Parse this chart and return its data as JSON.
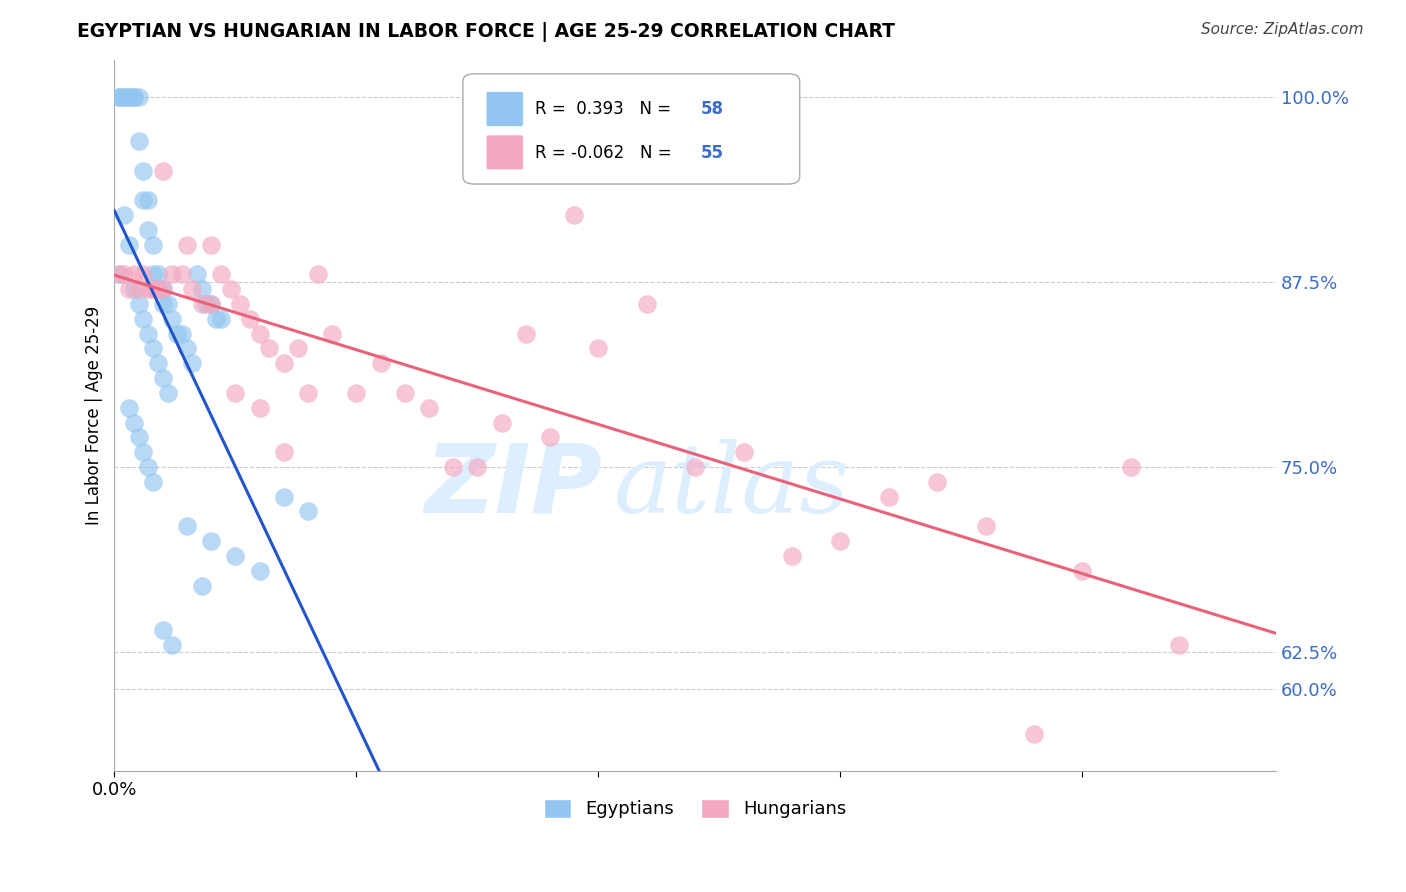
{
  "title": "EGYPTIAN VS HUNGARIAN IN LABOR FORCE | AGE 25-29 CORRELATION CHART",
  "source": "Source: ZipAtlas.com",
  "ylabel": "In Labor Force | Age 25-29",
  "xlim": [
    0.0,
    0.24
  ],
  "ylim": [
    0.545,
    1.025
  ],
  "r_egyptian": 0.393,
  "n_egyptian": 58,
  "r_hungarian": -0.062,
  "n_hungarian": 55,
  "color_egyptian": "#92C5F0",
  "color_hungarian": "#F4A8C0",
  "line_color_egyptian": "#2255CC",
  "line_color_hungarian": "#E8637A",
  "background_color": "#ffffff",
  "grid_color": "#cccccc",
  "watermark_color": "#ddeeff",
  "right_ytick_positions": [
    0.6,
    0.625,
    0.75,
    0.875,
    1.0
  ],
  "right_ytick_labels": [
    "60.0%",
    "62.5%",
    "75.0%",
    "87.5%",
    "100.0%"
  ],
  "xtick_label": "0.0%",
  "egyptian_x": [
    0.001,
    0.001,
    0.002,
    0.002,
    0.003,
    0.003,
    0.004,
    0.004,
    0.005,
    0.005,
    0.006,
    0.006,
    0.007,
    0.007,
    0.008,
    0.008,
    0.009,
    0.009,
    0.01,
    0.01,
    0.011,
    0.012,
    0.013,
    0.014,
    0.015,
    0.016,
    0.017,
    0.018,
    0.019,
    0.02,
    0.021,
    0.022,
    0.001,
    0.002,
    0.003,
    0.004,
    0.005,
    0.006,
    0.007,
    0.008,
    0.009,
    0.01,
    0.011,
    0.003,
    0.004,
    0.005,
    0.006,
    0.007,
    0.008,
    0.035,
    0.04,
    0.01,
    0.012,
    0.015,
    0.02,
    0.025,
    0.03,
    0.018
  ],
  "egyptian_y": [
    1.0,
    1.0,
    1.0,
    1.0,
    1.0,
    1.0,
    1.0,
    1.0,
    1.0,
    0.97,
    0.95,
    0.93,
    0.93,
    0.91,
    0.9,
    0.88,
    0.88,
    0.87,
    0.87,
    0.86,
    0.86,
    0.85,
    0.84,
    0.84,
    0.83,
    0.82,
    0.88,
    0.87,
    0.86,
    0.86,
    0.85,
    0.85,
    0.88,
    0.92,
    0.9,
    0.87,
    0.86,
    0.85,
    0.84,
    0.83,
    0.82,
    0.81,
    0.8,
    0.79,
    0.78,
    0.77,
    0.76,
    0.75,
    0.74,
    0.73,
    0.72,
    0.64,
    0.63,
    0.71,
    0.7,
    0.69,
    0.68,
    0.67
  ],
  "hungarian_x": [
    0.001,
    0.002,
    0.003,
    0.004,
    0.005,
    0.006,
    0.007,
    0.008,
    0.009,
    0.01,
    0.012,
    0.014,
    0.016,
    0.018,
    0.02,
    0.022,
    0.024,
    0.026,
    0.028,
    0.03,
    0.032,
    0.035,
    0.038,
    0.04,
    0.042,
    0.045,
    0.05,
    0.055,
    0.06,
    0.065,
    0.07,
    0.075,
    0.08,
    0.085,
    0.09,
    0.095,
    0.1,
    0.11,
    0.12,
    0.13,
    0.14,
    0.15,
    0.16,
    0.17,
    0.18,
    0.19,
    0.2,
    0.21,
    0.22,
    0.01,
    0.015,
    0.02,
    0.025,
    0.03,
    0.035
  ],
  "hungarian_y": [
    0.88,
    0.88,
    0.87,
    0.88,
    0.87,
    0.88,
    0.87,
    0.87,
    0.87,
    0.87,
    0.88,
    0.88,
    0.87,
    0.86,
    0.9,
    0.88,
    0.87,
    0.86,
    0.85,
    0.84,
    0.83,
    0.82,
    0.83,
    0.8,
    0.88,
    0.84,
    0.8,
    0.82,
    0.8,
    0.79,
    0.75,
    0.75,
    0.78,
    0.84,
    0.77,
    0.92,
    0.83,
    0.86,
    0.75,
    0.76,
    0.69,
    0.7,
    0.73,
    0.74,
    0.71,
    0.57,
    0.68,
    0.75,
    0.63,
    0.95,
    0.9,
    0.86,
    0.8,
    0.79,
    0.76
  ]
}
